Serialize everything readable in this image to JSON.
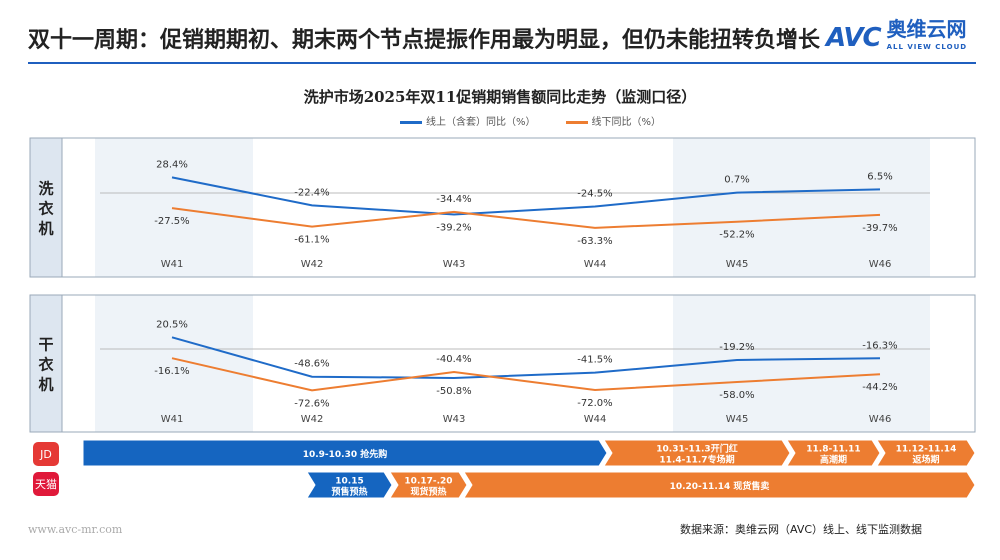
{
  "title": "双十一周期：促销期期初、期末两个节点提振作用最为明显，但仍未能扭转负增长",
  "logo": {
    "text": "AVC",
    "cn": "奥维云网",
    "en": "ALL VIEW CLOUD"
  },
  "chart_data": [
    {
      "type": "line",
      "title": "洗护市场2025年双11促销期销售额同比走势（监测口径）",
      "panel": "洗衣机",
      "categories": [
        "W41",
        "W42",
        "W43",
        "W44",
        "W45",
        "W46"
      ],
      "series": [
        {
          "name": "线上（含套）同比（%）",
          "color": "#1f6bc8",
          "values": [
            28.4,
            -22.4,
            -39.2,
            -24.5,
            0.7,
            6.5
          ]
        },
        {
          "name": "线下同比（%）",
          "color": "#ed7d31",
          "values": [
            -27.5,
            -61.1,
            -34.4,
            -63.3,
            -52.2,
            -39.7
          ]
        }
      ]
    },
    {
      "type": "line",
      "panel": "干衣机",
      "categories": [
        "W41",
        "W42",
        "W43",
        "W44",
        "W45",
        "W46"
      ],
      "series": [
        {
          "name": "线上（含套）同比（%）",
          "color": "#1f6bc8",
          "values": [
            20.5,
            -48.6,
            -50.8,
            -41.5,
            -19.2,
            -16.3
          ]
        },
        {
          "name": "线下同比（%）",
          "color": "#ed7d31",
          "values": [
            -16.1,
            -72.6,
            -40.4,
            -72.0,
            -58.0,
            -44.2
          ]
        }
      ]
    }
  ],
  "chart_title": "洗护市场2025年双11促销期销售额同比走势（监测口径）",
  "legend": [
    "线上（含套）同比（%）",
    "线下同比（%）"
  ],
  "panels": [
    "洗衣机",
    "干衣机"
  ],
  "timeline": {
    "jd_icon": "JD",
    "tmall_icon": "天猫",
    "jd": [
      "10.9-10.30 抢先购",
      "10.31-11.3开门红\n11.4-11.7专场期",
      "11.8-11.11\n高潮期",
      "11.12-11.14\n返场期"
    ],
    "tmall": [
      "10.15\n预售预热",
      "10.17-.20\n现货预热",
      "10.20-11.14 现货售卖"
    ]
  },
  "footer": {
    "site": "www.avc-mr.com",
    "source": "数据来源：奥维云网（AVC）线上、线下监测数据"
  }
}
